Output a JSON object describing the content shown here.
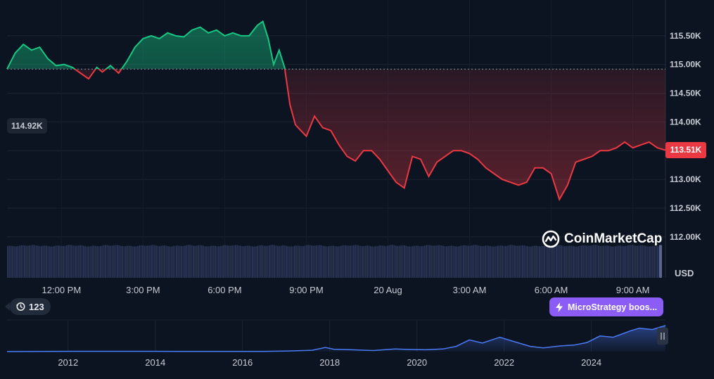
{
  "chart_data": {
    "type": "area",
    "title": "",
    "currency_label": "USD",
    "reference_value": 114.92,
    "reference_label": "114.92K",
    "current_label": "113.51K",
    "y_unit": "K",
    "ylim": [
      111.9,
      116.0
    ],
    "y_ticks": [
      {
        "value": 115.5,
        "label": "115.50K"
      },
      {
        "value": 115.0,
        "label": "115.00K"
      },
      {
        "value": 114.5,
        "label": "114.50K"
      },
      {
        "value": 114.0,
        "label": "114.00K"
      },
      {
        "value": 113.5,
        "label": "113.50K"
      },
      {
        "value": 113.0,
        "label": "113.00K"
      },
      {
        "value": 112.5,
        "label": "112.50K"
      },
      {
        "value": 112.0,
        "label": "112.00K"
      }
    ],
    "x_range_hours": [
      10.0,
      34.2
    ],
    "x_ticks": [
      {
        "hour": 12,
        "label": "12:00 PM"
      },
      {
        "hour": 15,
        "label": "3:00 PM"
      },
      {
        "hour": 18,
        "label": "6:00 PM"
      },
      {
        "hour": 21,
        "label": "9:00 PM"
      },
      {
        "hour": 24,
        "label": "20 Aug"
      },
      {
        "hour": 27,
        "label": "3:00 AM"
      },
      {
        "hour": 30,
        "label": "6:00 AM"
      },
      {
        "hour": 33,
        "label": "9:00 AM"
      }
    ],
    "price_series": {
      "hours": [
        10.0,
        10.3,
        10.6,
        10.9,
        11.2,
        11.5,
        11.8,
        12.1,
        12.4,
        12.7,
        13.0,
        13.3,
        13.5,
        13.8,
        14.1,
        14.4,
        14.7,
        15.0,
        15.3,
        15.6,
        15.9,
        16.2,
        16.5,
        16.8,
        17.1,
        17.4,
        17.7,
        18.0,
        18.3,
        18.6,
        18.9,
        19.2,
        19.4,
        19.6,
        19.8,
        20.0,
        20.2,
        20.4,
        20.6,
        20.8,
        21.0,
        21.3,
        21.6,
        21.9,
        22.2,
        22.5,
        22.8,
        23.1,
        23.4,
        23.7,
        24.0,
        24.3,
        24.6,
        24.9,
        25.2,
        25.5,
        25.8,
        26.1,
        26.4,
        26.7,
        27.0,
        27.3,
        27.6,
        27.9,
        28.2,
        28.5,
        28.8,
        29.1,
        29.4,
        29.7,
        30.0,
        30.3,
        30.6,
        30.9,
        31.2,
        31.5,
        31.8,
        32.1,
        32.4,
        32.7,
        33.0,
        33.3,
        33.6,
        33.9,
        34.2
      ],
      "values": [
        114.92,
        115.2,
        115.35,
        115.25,
        115.3,
        115.1,
        114.98,
        115.0,
        114.95,
        114.85,
        114.75,
        114.95,
        114.87,
        114.98,
        114.85,
        115.05,
        115.3,
        115.45,
        115.5,
        115.45,
        115.55,
        115.5,
        115.48,
        115.6,
        115.65,
        115.55,
        115.6,
        115.5,
        115.55,
        115.5,
        115.5,
        115.68,
        115.75,
        115.45,
        115.0,
        115.25,
        114.95,
        114.3,
        113.95,
        113.85,
        113.75,
        114.1,
        113.9,
        113.85,
        113.6,
        113.4,
        113.32,
        113.5,
        113.5,
        113.35,
        113.15,
        112.95,
        112.85,
        113.4,
        113.35,
        113.05,
        113.3,
        113.4,
        113.5,
        113.5,
        113.45,
        113.35,
        113.2,
        113.1,
        113.0,
        112.95,
        112.9,
        112.95,
        113.2,
        113.2,
        113.1,
        112.65,
        112.9,
        113.3,
        113.35,
        113.4,
        113.5,
        113.5,
        113.55,
        113.65,
        113.55,
        113.6,
        113.65,
        113.55,
        113.51
      ]
    },
    "volume_series": {
      "note_units": "relative",
      "level": 0.97
    },
    "overview": {
      "x_ticks": [
        "2012",
        "2014",
        "2016",
        "2018",
        "2020",
        "2022",
        "2024"
      ],
      "x_range": [
        2010.6,
        2025.7
      ],
      "years": [
        2010.6,
        2012.0,
        2013.0,
        2014.0,
        2015.0,
        2016.0,
        2016.5,
        2017.0,
        2017.6,
        2017.9,
        2018.1,
        2018.5,
        2019.0,
        2019.5,
        2019.8,
        2020.2,
        2020.6,
        2020.9,
        2021.2,
        2021.5,
        2021.9,
        2022.3,
        2022.6,
        2022.9,
        2023.3,
        2023.6,
        2023.9,
        2024.2,
        2024.5,
        2024.9,
        2025.1,
        2025.4,
        2025.7
      ],
      "values": [
        0.0,
        0.01,
        0.01,
        0.01,
        0.005,
        0.006,
        0.008,
        0.02,
        0.05,
        0.16,
        0.09,
        0.07,
        0.04,
        0.1,
        0.08,
        0.07,
        0.1,
        0.2,
        0.45,
        0.33,
        0.55,
        0.35,
        0.2,
        0.14,
        0.22,
        0.25,
        0.35,
        0.6,
        0.55,
        0.8,
        0.9,
        0.85,
        1.0
      ]
    }
  },
  "ui": {
    "logo_text": "CoinMarketCap",
    "history_count": "123",
    "event_badge_text": "MicroStrategy boos...",
    "colors": {
      "background": "#0d1421",
      "up": "#16c784",
      "down": "#ea3943",
      "volume": "#2b3556",
      "overview_line": "#4a7bf7",
      "event": "#8b5cf6"
    }
  }
}
